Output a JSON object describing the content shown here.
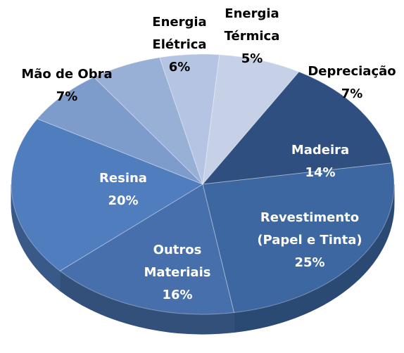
{
  "chart_data": {
    "type": "pie",
    "categories": [
      "Depreciação",
      "Madeira",
      "Revestimento (Papel e Tinta)",
      "Outros Materiais",
      "Resina",
      "Mão de Obra",
      "Energia Elétrica",
      "Energia Térmica"
    ],
    "values": [
      7,
      14,
      25,
      16,
      20,
      7,
      6,
      5
    ],
    "value_labels": [
      "7%",
      "14%",
      "25%",
      "16%",
      "20%",
      "7%",
      "6%",
      "5%"
    ],
    "colors": [
      "#c6d1e7",
      "#2f4f80",
      "#3c67a0",
      "#476fab",
      "#4f7dbd",
      "#7d9bcb",
      "#98afd6",
      "#b4c4e2"
    ]
  }
}
